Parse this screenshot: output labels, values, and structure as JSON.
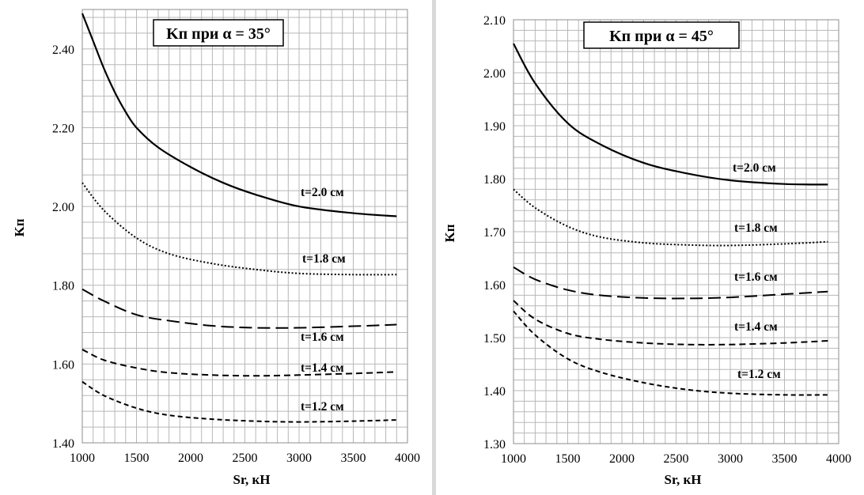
{
  "chart_data": [
    {
      "type": "line",
      "title": "Kп при α = 35°",
      "xlabel": "Sr, кН",
      "ylabel": "Kп",
      "xlim": [
        1000,
        4000
      ],
      "ylim": [
        1.4,
        2.5
      ],
      "x_ticks": [
        "1000",
        "1500",
        "2000",
        "2500",
        "3000",
        "3500",
        "4000"
      ],
      "y_ticks": [
        "1.40",
        "1.60",
        "1.80",
        "2.00",
        "2.20",
        "2.40"
      ],
      "grid": true,
      "series": [
        {
          "name": "t=2.0 см",
          "style": "solid",
          "x": [
            1000,
            1100,
            1200,
            1300,
            1400,
            1500,
            1700,
            2000,
            2300,
            2600,
            3000,
            3500,
            3900
          ],
          "y": [
            2.49,
            2.42,
            2.35,
            2.29,
            2.24,
            2.2,
            2.15,
            2.1,
            2.06,
            2.03,
            2.0,
            1.983,
            1.975
          ]
        },
        {
          "name": "t=1.8 см",
          "style": "dotted",
          "x": [
            1000,
            1200,
            1500,
            1800,
            2200,
            2600,
            3000,
            3500,
            3900
          ],
          "y": [
            2.06,
            1.99,
            1.92,
            1.88,
            1.855,
            1.84,
            1.83,
            1.827,
            1.827
          ]
        },
        {
          "name": "t=1.6 см",
          "style": "long-dash",
          "x": [
            1000,
            1200,
            1500,
            1800,
            2200,
            2600,
            3000,
            3500,
            3900
          ],
          "y": [
            1.79,
            1.76,
            1.725,
            1.71,
            1.697,
            1.692,
            1.692,
            1.696,
            1.7
          ]
        },
        {
          "name": "t=1.4 см",
          "style": "dash",
          "x": [
            1000,
            1200,
            1500,
            1800,
            2200,
            2600,
            3000,
            3500,
            3900
          ],
          "y": [
            1.637,
            1.61,
            1.59,
            1.578,
            1.572,
            1.57,
            1.572,
            1.576,
            1.58
          ]
        },
        {
          "name": "t=1.2 см",
          "style": "short-dash",
          "x": [
            1000,
            1200,
            1500,
            1800,
            2200,
            2600,
            3000,
            3500,
            3900
          ],
          "y": [
            1.555,
            1.52,
            1.488,
            1.47,
            1.46,
            1.455,
            1.453,
            1.455,
            1.458
          ]
        }
      ]
    },
    {
      "type": "line",
      "title": "Kп при α = 45°",
      "xlabel": "Sr, кН",
      "ylabel": "Kп",
      "xlim": [
        1000,
        4000
      ],
      "ylim": [
        1.3,
        2.1
      ],
      "x_ticks": [
        "1000",
        "1500",
        "2000",
        "2500",
        "3000",
        "3500",
        "4000"
      ],
      "y_ticks": [
        "1.30",
        "1.40",
        "1.50",
        "1.60",
        "1.70",
        "1.80",
        "1.90",
        "2.00",
        "2.10"
      ],
      "grid": true,
      "series": [
        {
          "name": "t=2.0 см",
          "style": "solid",
          "x": [
            1000,
            1200,
            1500,
            1800,
            2200,
            2600,
            3000,
            3500,
            3900
          ],
          "y": [
            2.055,
            1.98,
            1.905,
            1.865,
            1.83,
            1.81,
            1.797,
            1.79,
            1.789
          ]
        },
        {
          "name": "t=1.8 см",
          "style": "dotted",
          "x": [
            1000,
            1200,
            1500,
            1800,
            2200,
            2600,
            3000,
            3500,
            3900
          ],
          "y": [
            1.78,
            1.745,
            1.71,
            1.69,
            1.679,
            1.675,
            1.674,
            1.677,
            1.681
          ]
        },
        {
          "name": "t=1.6 см",
          "style": "long-dash",
          "x": [
            1000,
            1200,
            1500,
            1800,
            2200,
            2600,
            3000,
            3500,
            3900
          ],
          "y": [
            1.633,
            1.61,
            1.59,
            1.58,
            1.575,
            1.574,
            1.576,
            1.582,
            1.587
          ]
        },
        {
          "name": "t=1.4 см",
          "style": "dash",
          "x": [
            1000,
            1200,
            1500,
            1800,
            2200,
            2600,
            3000,
            3500,
            3900
          ],
          "y": [
            1.57,
            1.535,
            1.508,
            1.497,
            1.49,
            1.487,
            1.487,
            1.49,
            1.494
          ]
        },
        {
          "name": "t=1.2 см",
          "style": "short-dash",
          "x": [
            1000,
            1200,
            1500,
            1800,
            2200,
            2600,
            3000,
            3500,
            3900
          ],
          "y": [
            1.55,
            1.505,
            1.46,
            1.435,
            1.415,
            1.402,
            1.395,
            1.392,
            1.392
          ]
        }
      ]
    }
  ]
}
